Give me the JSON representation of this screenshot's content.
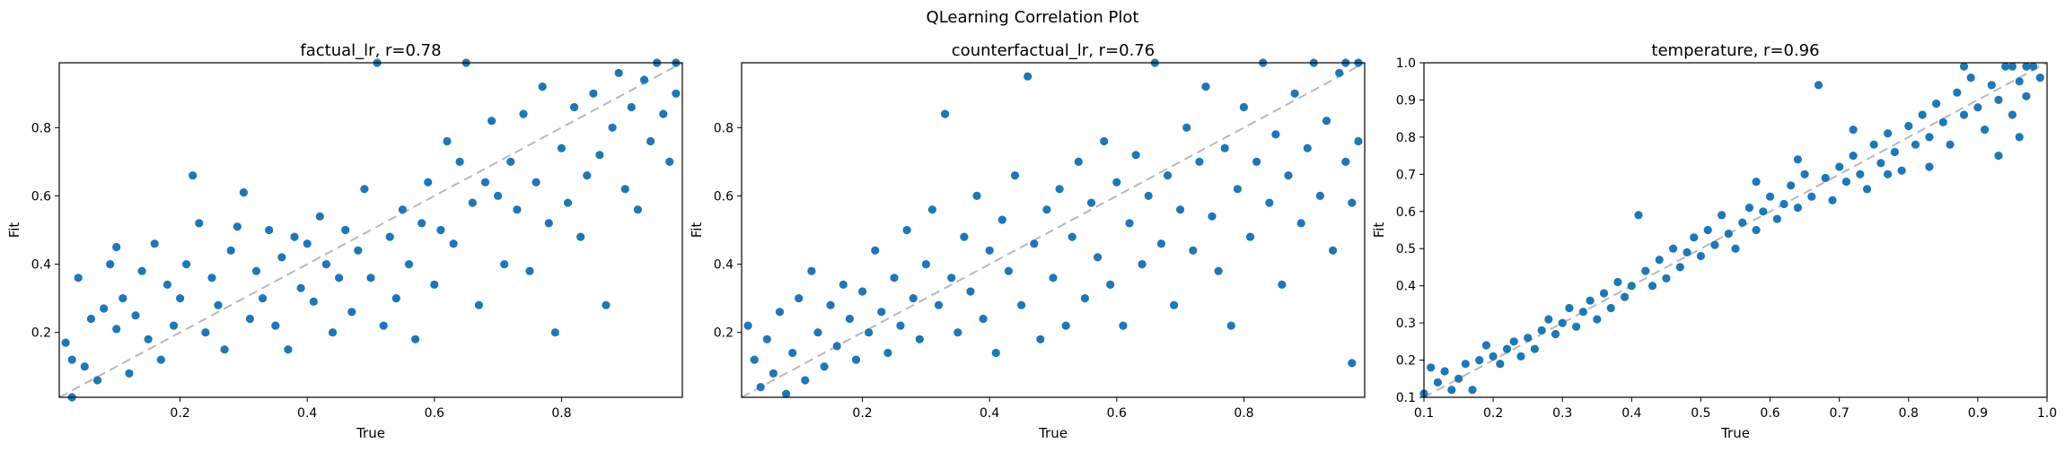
{
  "figure": {
    "suptitle": "QLearning Correlation Plot"
  },
  "chart_data": [
    {
      "type": "scatter",
      "title": "factual_lr, r=0.78",
      "xlabel": "True",
      "ylabel": "Fit",
      "xlim": [
        0.01,
        0.99
      ],
      "ylim": [
        0.01,
        0.99
      ],
      "xticks": [
        0.2,
        0.4,
        0.6,
        0.8
      ],
      "yticks": [
        0.2,
        0.4,
        0.6,
        0.8
      ],
      "xtick_labels": [
        "0.2",
        "0.4",
        "0.6",
        "0.8"
      ],
      "ytick_labels": [
        "0.2",
        "0.4",
        "0.6",
        "0.8"
      ],
      "identity_line": true,
      "grid": false,
      "color": "#1f77b4",
      "points": [
        [
          0.02,
          0.17
        ],
        [
          0.03,
          0.12
        ],
        [
          0.03,
          0.01
        ],
        [
          0.04,
          0.36
        ],
        [
          0.05,
          0.1
        ],
        [
          0.06,
          0.24
        ],
        [
          0.07,
          0.06
        ],
        [
          0.08,
          0.27
        ],
        [
          0.09,
          0.4
        ],
        [
          0.1,
          0.21
        ],
        [
          0.1,
          0.45
        ],
        [
          0.11,
          0.3
        ],
        [
          0.12,
          0.08
        ],
        [
          0.13,
          0.25
        ],
        [
          0.14,
          0.38
        ],
        [
          0.15,
          0.18
        ],
        [
          0.16,
          0.46
        ],
        [
          0.17,
          0.12
        ],
        [
          0.18,
          0.34
        ],
        [
          0.19,
          0.22
        ],
        [
          0.2,
          0.3
        ],
        [
          0.21,
          0.4
        ],
        [
          0.22,
          0.66
        ],
        [
          0.23,
          0.52
        ],
        [
          0.24,
          0.2
        ],
        [
          0.25,
          0.36
        ],
        [
          0.26,
          0.28
        ],
        [
          0.27,
          0.15
        ],
        [
          0.28,
          0.44
        ],
        [
          0.29,
          0.51
        ],
        [
          0.3,
          0.61
        ],
        [
          0.31,
          0.24
        ],
        [
          0.32,
          0.38
        ],
        [
          0.33,
          0.3
        ],
        [
          0.34,
          0.5
        ],
        [
          0.35,
          0.22
        ],
        [
          0.36,
          0.42
        ],
        [
          0.37,
          0.15
        ],
        [
          0.38,
          0.48
        ],
        [
          0.39,
          0.33
        ],
        [
          0.4,
          0.46
        ],
        [
          0.41,
          0.29
        ],
        [
          0.42,
          0.54
        ],
        [
          0.43,
          0.4
        ],
        [
          0.44,
          0.2
        ],
        [
          0.45,
          0.36
        ],
        [
          0.46,
          0.5
        ],
        [
          0.47,
          0.26
        ],
        [
          0.48,
          0.44
        ],
        [
          0.49,
          0.62
        ],
        [
          0.5,
          0.36
        ],
        [
          0.51,
          0.99
        ],
        [
          0.52,
          0.22
        ],
        [
          0.53,
          0.48
        ],
        [
          0.54,
          0.3
        ],
        [
          0.55,
          0.56
        ],
        [
          0.56,
          0.4
        ],
        [
          0.57,
          0.18
        ],
        [
          0.58,
          0.52
        ],
        [
          0.59,
          0.64
        ],
        [
          0.6,
          0.34
        ],
        [
          0.61,
          0.5
        ],
        [
          0.62,
          0.76
        ],
        [
          0.63,
          0.46
        ],
        [
          0.64,
          0.7
        ],
        [
          0.65,
          0.99
        ],
        [
          0.66,
          0.58
        ],
        [
          0.67,
          0.28
        ],
        [
          0.68,
          0.64
        ],
        [
          0.69,
          0.82
        ],
        [
          0.7,
          0.6
        ],
        [
          0.71,
          0.4
        ],
        [
          0.72,
          0.7
        ],
        [
          0.73,
          0.56
        ],
        [
          0.74,
          0.84
        ],
        [
          0.75,
          0.38
        ],
        [
          0.76,
          0.64
        ],
        [
          0.77,
          0.92
        ],
        [
          0.78,
          0.52
        ],
        [
          0.79,
          0.2
        ],
        [
          0.8,
          0.74
        ],
        [
          0.81,
          0.58
        ],
        [
          0.82,
          0.86
        ],
        [
          0.83,
          0.48
        ],
        [
          0.84,
          0.66
        ],
        [
          0.85,
          0.9
        ],
        [
          0.86,
          0.72
        ],
        [
          0.87,
          0.28
        ],
        [
          0.88,
          0.8
        ],
        [
          0.89,
          0.96
        ],
        [
          0.9,
          0.62
        ],
        [
          0.91,
          0.86
        ],
        [
          0.92,
          0.56
        ],
        [
          0.93,
          0.94
        ],
        [
          0.94,
          0.76
        ],
        [
          0.95,
          0.99
        ],
        [
          0.96,
          0.84
        ],
        [
          0.97,
          0.7
        ],
        [
          0.98,
          0.9
        ],
        [
          0.98,
          0.99
        ]
      ]
    },
    {
      "type": "scatter",
      "title": "counterfactual_lr, r=0.76",
      "xlabel": "True",
      "ylabel": "Fit",
      "xlim": [
        0.01,
        0.99
      ],
      "ylim": [
        0.01,
        0.99
      ],
      "xticks": [
        0.2,
        0.4,
        0.6,
        0.8
      ],
      "yticks": [
        0.2,
        0.4,
        0.6,
        0.8
      ],
      "xtick_labels": [
        "0.2",
        "0.4",
        "0.6",
        "0.8"
      ],
      "ytick_labels": [
        "0.2",
        "0.4",
        "0.6",
        "0.8"
      ],
      "identity_line": true,
      "grid": false,
      "color": "#1f77b4",
      "points": [
        [
          0.02,
          0.22
        ],
        [
          0.03,
          0.12
        ],
        [
          0.04,
          0.04
        ],
        [
          0.05,
          0.18
        ],
        [
          0.06,
          0.08
        ],
        [
          0.07,
          0.26
        ],
        [
          0.08,
          0.02
        ],
        [
          0.09,
          0.14
        ],
        [
          0.1,
          0.3
        ],
        [
          0.11,
          0.06
        ],
        [
          0.12,
          0.38
        ],
        [
          0.13,
          0.2
        ],
        [
          0.14,
          0.1
        ],
        [
          0.15,
          0.28
        ],
        [
          0.16,
          0.16
        ],
        [
          0.17,
          0.34
        ],
        [
          0.18,
          0.24
        ],
        [
          0.19,
          0.12
        ],
        [
          0.2,
          0.32
        ],
        [
          0.21,
          0.2
        ],
        [
          0.22,
          0.44
        ],
        [
          0.23,
          0.26
        ],
        [
          0.24,
          0.14
        ],
        [
          0.25,
          0.36
        ],
        [
          0.26,
          0.22
        ],
        [
          0.27,
          0.5
        ],
        [
          0.28,
          0.3
        ],
        [
          0.29,
          0.18
        ],
        [
          0.3,
          0.4
        ],
        [
          0.31,
          0.56
        ],
        [
          0.32,
          0.28
        ],
        [
          0.33,
          0.84
        ],
        [
          0.34,
          0.36
        ],
        [
          0.35,
          0.2
        ],
        [
          0.36,
          0.48
        ],
        [
          0.37,
          0.32
        ],
        [
          0.38,
          0.6
        ],
        [
          0.39,
          0.24
        ],
        [
          0.4,
          0.44
        ],
        [
          0.41,
          0.14
        ],
        [
          0.42,
          0.53
        ],
        [
          0.43,
          0.38
        ],
        [
          0.44,
          0.66
        ],
        [
          0.45,
          0.28
        ],
        [
          0.46,
          0.95
        ],
        [
          0.47,
          0.46
        ],
        [
          0.48,
          0.18
        ],
        [
          0.49,
          0.56
        ],
        [
          0.5,
          0.36
        ],
        [
          0.51,
          0.62
        ],
        [
          0.52,
          0.22
        ],
        [
          0.53,
          0.48
        ],
        [
          0.54,
          0.7
        ],
        [
          0.55,
          0.3
        ],
        [
          0.56,
          0.58
        ],
        [
          0.57,
          0.42
        ],
        [
          0.58,
          0.76
        ],
        [
          0.59,
          0.34
        ],
        [
          0.6,
          0.64
        ],
        [
          0.61,
          0.22
        ],
        [
          0.62,
          0.52
        ],
        [
          0.63,
          0.72
        ],
        [
          0.64,
          0.4
        ],
        [
          0.65,
          0.6
        ],
        [
          0.66,
          0.99
        ],
        [
          0.67,
          0.46
        ],
        [
          0.68,
          0.66
        ],
        [
          0.69,
          0.28
        ],
        [
          0.7,
          0.56
        ],
        [
          0.71,
          0.8
        ],
        [
          0.72,
          0.44
        ],
        [
          0.73,
          0.7
        ],
        [
          0.74,
          0.92
        ],
        [
          0.75,
          0.54
        ],
        [
          0.76,
          0.38
        ],
        [
          0.77,
          0.74
        ],
        [
          0.78,
          0.22
        ],
        [
          0.79,
          0.62
        ],
        [
          0.8,
          0.86
        ],
        [
          0.81,
          0.48
        ],
        [
          0.82,
          0.7
        ],
        [
          0.83,
          0.99
        ],
        [
          0.84,
          0.58
        ],
        [
          0.85,
          0.78
        ],
        [
          0.86,
          0.34
        ],
        [
          0.87,
          0.66
        ],
        [
          0.88,
          0.9
        ],
        [
          0.89,
          0.52
        ],
        [
          0.9,
          0.74
        ],
        [
          0.91,
          0.99
        ],
        [
          0.92,
          0.6
        ],
        [
          0.93,
          0.82
        ],
        [
          0.94,
          0.44
        ],
        [
          0.95,
          0.96
        ],
        [
          0.96,
          0.7
        ],
        [
          0.97,
          0.11
        ],
        [
          0.97,
          0.58
        ],
        [
          0.98,
          0.76
        ],
        [
          0.98,
          0.99
        ],
        [
          0.96,
          0.99
        ]
      ]
    },
    {
      "type": "scatter",
      "title": "temperature, r=0.96",
      "xlabel": "True",
      "ylabel": "Fit",
      "xlim": [
        0.1,
        1.0
      ],
      "ylim": [
        0.1,
        1.0
      ],
      "xticks": [
        0.1,
        0.2,
        0.3,
        0.4,
        0.5,
        0.6,
        0.7,
        0.8,
        0.9,
        1.0
      ],
      "yticks": [
        0.1,
        0.2,
        0.3,
        0.4,
        0.5,
        0.6,
        0.7,
        0.8,
        0.9,
        1.0
      ],
      "xtick_labels": [
        "0.1",
        "0.2",
        "0.3",
        "0.4",
        "0.5",
        "0.6",
        "0.7",
        "0.8",
        "0.9",
        "1.0"
      ],
      "ytick_labels": [
        "0.1",
        "0.2",
        "0.3",
        "0.4",
        "0.5",
        "0.6",
        "0.7",
        "0.8",
        "0.9",
        "1.0"
      ],
      "identity_line": true,
      "grid": false,
      "color": "#1f77b4",
      "points": [
        [
          0.1,
          0.11
        ],
        [
          0.11,
          0.18
        ],
        [
          0.12,
          0.14
        ],
        [
          0.13,
          0.17
        ],
        [
          0.14,
          0.12
        ],
        [
          0.15,
          0.15
        ],
        [
          0.16,
          0.19
        ],
        [
          0.17,
          0.12
        ],
        [
          0.18,
          0.2
        ],
        [
          0.19,
          0.24
        ],
        [
          0.2,
          0.21
        ],
        [
          0.21,
          0.19
        ],
        [
          0.22,
          0.23
        ],
        [
          0.23,
          0.25
        ],
        [
          0.24,
          0.21
        ],
        [
          0.25,
          0.26
        ],
        [
          0.26,
          0.23
        ],
        [
          0.27,
          0.28
        ],
        [
          0.28,
          0.31
        ],
        [
          0.29,
          0.27
        ],
        [
          0.3,
          0.3
        ],
        [
          0.31,
          0.34
        ],
        [
          0.32,
          0.29
        ],
        [
          0.33,
          0.33
        ],
        [
          0.34,
          0.36
        ],
        [
          0.35,
          0.31
        ],
        [
          0.36,
          0.38
        ],
        [
          0.37,
          0.34
        ],
        [
          0.38,
          0.41
        ],
        [
          0.39,
          0.37
        ],
        [
          0.4,
          0.4
        ],
        [
          0.41,
          0.59
        ],
        [
          0.42,
          0.44
        ],
        [
          0.43,
          0.4
        ],
        [
          0.44,
          0.47
        ],
        [
          0.45,
          0.42
        ],
        [
          0.46,
          0.5
        ],
        [
          0.47,
          0.45
        ],
        [
          0.48,
          0.49
        ],
        [
          0.49,
          0.53
        ],
        [
          0.5,
          0.48
        ],
        [
          0.51,
          0.55
        ],
        [
          0.52,
          0.51
        ],
        [
          0.53,
          0.59
        ],
        [
          0.54,
          0.54
        ],
        [
          0.55,
          0.5
        ],
        [
          0.56,
          0.57
        ],
        [
          0.57,
          0.61
        ],
        [
          0.58,
          0.55
        ],
        [
          0.59,
          0.6
        ],
        [
          0.6,
          0.64
        ],
        [
          0.61,
          0.58
        ],
        [
          0.62,
          0.62
        ],
        [
          0.63,
          0.67
        ],
        [
          0.64,
          0.61
        ],
        [
          0.65,
          0.7
        ],
        [
          0.66,
          0.64
        ],
        [
          0.67,
          0.94
        ],
        [
          0.68,
          0.69
        ],
        [
          0.69,
          0.63
        ],
        [
          0.7,
          0.72
        ],
        [
          0.71,
          0.68
        ],
        [
          0.72,
          0.75
        ],
        [
          0.73,
          0.7
        ],
        [
          0.74,
          0.66
        ],
        [
          0.75,
          0.78
        ],
        [
          0.76,
          0.73
        ],
        [
          0.77,
          0.81
        ],
        [
          0.78,
          0.76
        ],
        [
          0.79,
          0.71
        ],
        [
          0.8,
          0.83
        ],
        [
          0.81,
          0.78
        ],
        [
          0.82,
          0.86
        ],
        [
          0.83,
          0.8
        ],
        [
          0.84,
          0.89
        ],
        [
          0.85,
          0.84
        ],
        [
          0.86,
          0.78
        ],
        [
          0.87,
          0.92
        ],
        [
          0.88,
          0.86
        ],
        [
          0.89,
          0.96
        ],
        [
          0.9,
          0.88
        ],
        [
          0.91,
          0.82
        ],
        [
          0.92,
          0.94
        ],
        [
          0.93,
          0.9
        ],
        [
          0.94,
          0.99
        ],
        [
          0.95,
          0.86
        ],
        [
          0.96,
          0.95
        ],
        [
          0.97,
          0.91
        ],
        [
          0.98,
          0.99
        ],
        [
          0.99,
          0.96
        ],
        [
          0.97,
          0.99
        ],
        [
          0.95,
          0.99
        ],
        [
          0.96,
          0.8
        ],
        [
          0.93,
          0.75
        ],
        [
          0.88,
          0.99
        ],
        [
          0.83,
          0.72
        ],
        [
          0.77,
          0.7
        ],
        [
          0.72,
          0.82
        ],
        [
          0.64,
          0.74
        ],
        [
          0.58,
          0.68
        ]
      ]
    }
  ]
}
